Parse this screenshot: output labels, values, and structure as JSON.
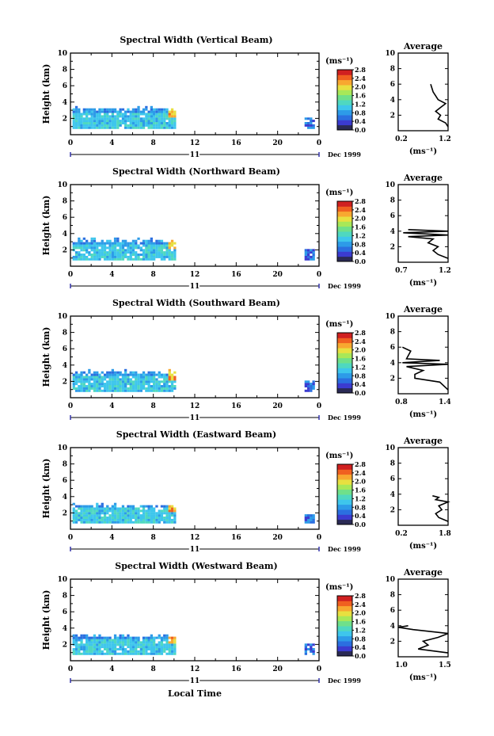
{
  "figure": {
    "xlabel": "Local Time",
    "date_label": "Dec 1999",
    "day_label": "11",
    "avg_title": "Average",
    "unit_label": "(ms⁻¹)",
    "colors": {
      "palette": [
        "#2a2a55",
        "#3b3bd0",
        "#2b6fe0",
        "#2d9be8",
        "#3ec6ec",
        "#4fd8c0",
        "#6fe08a",
        "#a8e858",
        "#e8e040",
        "#f8a830",
        "#f06020",
        "#d02020"
      ]
    }
  },
  "chart_data": [
    {
      "type": "heatmap",
      "title": "Spectral Width (Vertical Beam)",
      "ylabel": "Height (km)",
      "xlim": [
        0,
        24
      ],
      "ylim": [
        0,
        10
      ],
      "xticks": [
        "0",
        "4",
        "8",
        "12",
        "16",
        "20",
        "0"
      ],
      "yticks": [
        "2",
        "4",
        "6",
        "8",
        "10"
      ],
      "colorbar": {
        "label": "(ms⁻¹)",
        "ticks": [
          "0.0",
          "0.4",
          "0.8",
          "1.2",
          "1.6",
          "2.0",
          "2.4",
          "2.8"
        ],
        "range": [
          0,
          2.8
        ]
      },
      "coverage": {
        "time_end": 10,
        "top_km": 3.0,
        "late_block": [
          22.6,
          23.6
        ],
        "late_top_km": 2.0
      },
      "average": {
        "xlim": [
          0.2,
          1.2
        ],
        "xticks": [
          "0.2",
          "1.2"
        ],
        "yticks": [
          "2",
          "4",
          "6",
          "8",
          "10"
        ],
        "profile": [
          [
            1.2,
            0.5
          ],
          [
            1.15,
            1.0
          ],
          [
            1.0,
            1.5
          ],
          [
            1.05,
            2.0
          ],
          [
            0.95,
            2.5
          ],
          [
            1.05,
            3.0
          ],
          [
            1.15,
            3.5
          ],
          [
            1.0,
            4.0
          ],
          [
            0.95,
            4.5
          ],
          [
            0.9,
            5.0
          ],
          [
            0.85,
            6.0
          ]
        ]
      }
    },
    {
      "type": "heatmap",
      "title": "Spectral Width (Northward Beam)",
      "ylabel": "Height (km)",
      "xlim": [
        0,
        24
      ],
      "ylim": [
        0,
        10
      ],
      "xticks": [
        "0",
        "4",
        "8",
        "12",
        "16",
        "20",
        "0"
      ],
      "yticks": [
        "2",
        "4",
        "6",
        "8",
        "10"
      ],
      "colorbar": {
        "label": "(ms⁻¹)",
        "ticks": [
          "0.0",
          "0.4",
          "0.8",
          "1.2",
          "1.6",
          "2.0",
          "2.4",
          "2.8"
        ],
        "range": [
          0,
          2.8
        ]
      },
      "coverage": {
        "time_end": 10,
        "top_km": 3.0,
        "late_block": [
          22.6,
          23.6
        ],
        "late_top_km": 2.0
      },
      "average": {
        "xlim": [
          0.7,
          1.2
        ],
        "xticks": [
          "0.7",
          "1.2"
        ],
        "yticks": [
          "2",
          "4",
          "6",
          "8",
          "10"
        ],
        "profile": [
          [
            1.2,
            0.5
          ],
          [
            1.1,
            1.0
          ],
          [
            1.05,
            1.5
          ],
          [
            1.1,
            2.0
          ],
          [
            1.0,
            2.5
          ],
          [
            1.05,
            3.0
          ],
          [
            0.8,
            3.3
          ],
          [
            1.2,
            3.5
          ],
          [
            0.75,
            3.8
          ],
          [
            1.2,
            4.0
          ],
          [
            0.8,
            4.2
          ]
        ]
      }
    },
    {
      "type": "heatmap",
      "title": "Spectral Width (Southward Beam)",
      "ylabel": "Height (km)",
      "xlim": [
        0,
        24
      ],
      "ylim": [
        0,
        10
      ],
      "xticks": [
        "0",
        "4",
        "8",
        "12",
        "16",
        "20",
        "0"
      ],
      "yticks": [
        "2",
        "4",
        "6",
        "8",
        "10"
      ],
      "colorbar": {
        "label": "(ms⁻¹)",
        "ticks": [
          "0.0",
          "0.4",
          "0.8",
          "1.2",
          "1.6",
          "2.0",
          "2.4",
          "2.8"
        ],
        "range": [
          0,
          2.8
        ]
      },
      "coverage": {
        "time_end": 10,
        "top_km": 3.0,
        "late_block": [
          22.6,
          23.6
        ],
        "late_top_km": 2.0
      },
      "average": {
        "xlim": [
          0.8,
          1.4
        ],
        "xticks": [
          "0.8",
          "1.4"
        ],
        "yticks": [
          "2",
          "4",
          "6",
          "8",
          "10"
        ],
        "profile": [
          [
            1.4,
            0.5
          ],
          [
            1.3,
            1.5
          ],
          [
            1.0,
            2.0
          ],
          [
            1.0,
            2.5
          ],
          [
            1.1,
            3.0
          ],
          [
            0.9,
            3.5
          ],
          [
            1.4,
            3.8
          ],
          [
            0.85,
            4.0
          ],
          [
            1.3,
            4.3
          ],
          [
            0.9,
            4.5
          ],
          [
            0.95,
            5.5
          ],
          [
            0.85,
            6.0
          ]
        ]
      }
    },
    {
      "type": "heatmap",
      "title": "Spectral Width (Eastward Beam)",
      "ylabel": "Height (km)",
      "xlim": [
        0,
        24
      ],
      "ylim": [
        0,
        10
      ],
      "xticks": [
        "0",
        "4",
        "8",
        "12",
        "16",
        "20",
        "0"
      ],
      "yticks": [
        "2",
        "4",
        "6",
        "8",
        "10"
      ],
      "colorbar": {
        "label": "(ms⁻¹)",
        "ticks": [
          "0.0",
          "0.4",
          "0.8",
          "1.2",
          "1.6",
          "2.0",
          "2.4",
          "2.8"
        ],
        "range": [
          0,
          2.8
        ]
      },
      "coverage": {
        "time_end": 10,
        "top_km": 2.7,
        "late_block": [
          22.6,
          23.6
        ],
        "late_top_km": 1.8
      },
      "average": {
        "xlim": [
          0.2,
          1.8
        ],
        "xticks": [
          "0.2",
          "1.8"
        ],
        "yticks": [
          "2",
          "4",
          "6",
          "8",
          "10"
        ],
        "profile": [
          [
            1.8,
            0.5
          ],
          [
            1.5,
            1.0
          ],
          [
            1.4,
            1.5
          ],
          [
            1.6,
            2.0
          ],
          [
            1.5,
            2.5
          ],
          [
            1.8,
            3.0
          ],
          [
            1.4,
            3.3
          ],
          [
            1.5,
            3.6
          ],
          [
            1.3,
            3.8
          ]
        ]
      }
    },
    {
      "type": "heatmap",
      "title": "Spectral Width (Westward Beam)",
      "ylabel": "Height (km)",
      "xlim": [
        0,
        24
      ],
      "ylim": [
        0,
        10
      ],
      "xticks": [
        "0",
        "4",
        "8",
        "12",
        "16",
        "20",
        "0"
      ],
      "yticks": [
        "2",
        "4",
        "6",
        "8",
        "10"
      ],
      "colorbar": {
        "label": "(ms⁻¹)",
        "ticks": [
          "0.0",
          "0.4",
          "0.8",
          "1.2",
          "1.6",
          "2.0",
          "2.4",
          "2.8"
        ],
        "range": [
          0,
          2.8
        ]
      },
      "coverage": {
        "time_end": 10,
        "top_km": 2.8,
        "late_block": [
          22.6,
          23.6
        ],
        "late_top_km": 1.9
      },
      "average": {
        "xlim": [
          1.0,
          1.5
        ],
        "xticks": [
          "1.0",
          "1.5"
        ],
        "yticks": [
          "2",
          "4",
          "6",
          "8",
          "10"
        ],
        "profile": [
          [
            1.5,
            0.5
          ],
          [
            1.2,
            1.0
          ],
          [
            1.3,
            1.5
          ],
          [
            1.25,
            2.0
          ],
          [
            1.4,
            2.5
          ],
          [
            1.5,
            3.0
          ],
          [
            1.15,
            3.5
          ],
          [
            1.0,
            3.8
          ],
          [
            1.1,
            4.0
          ]
        ]
      }
    }
  ]
}
